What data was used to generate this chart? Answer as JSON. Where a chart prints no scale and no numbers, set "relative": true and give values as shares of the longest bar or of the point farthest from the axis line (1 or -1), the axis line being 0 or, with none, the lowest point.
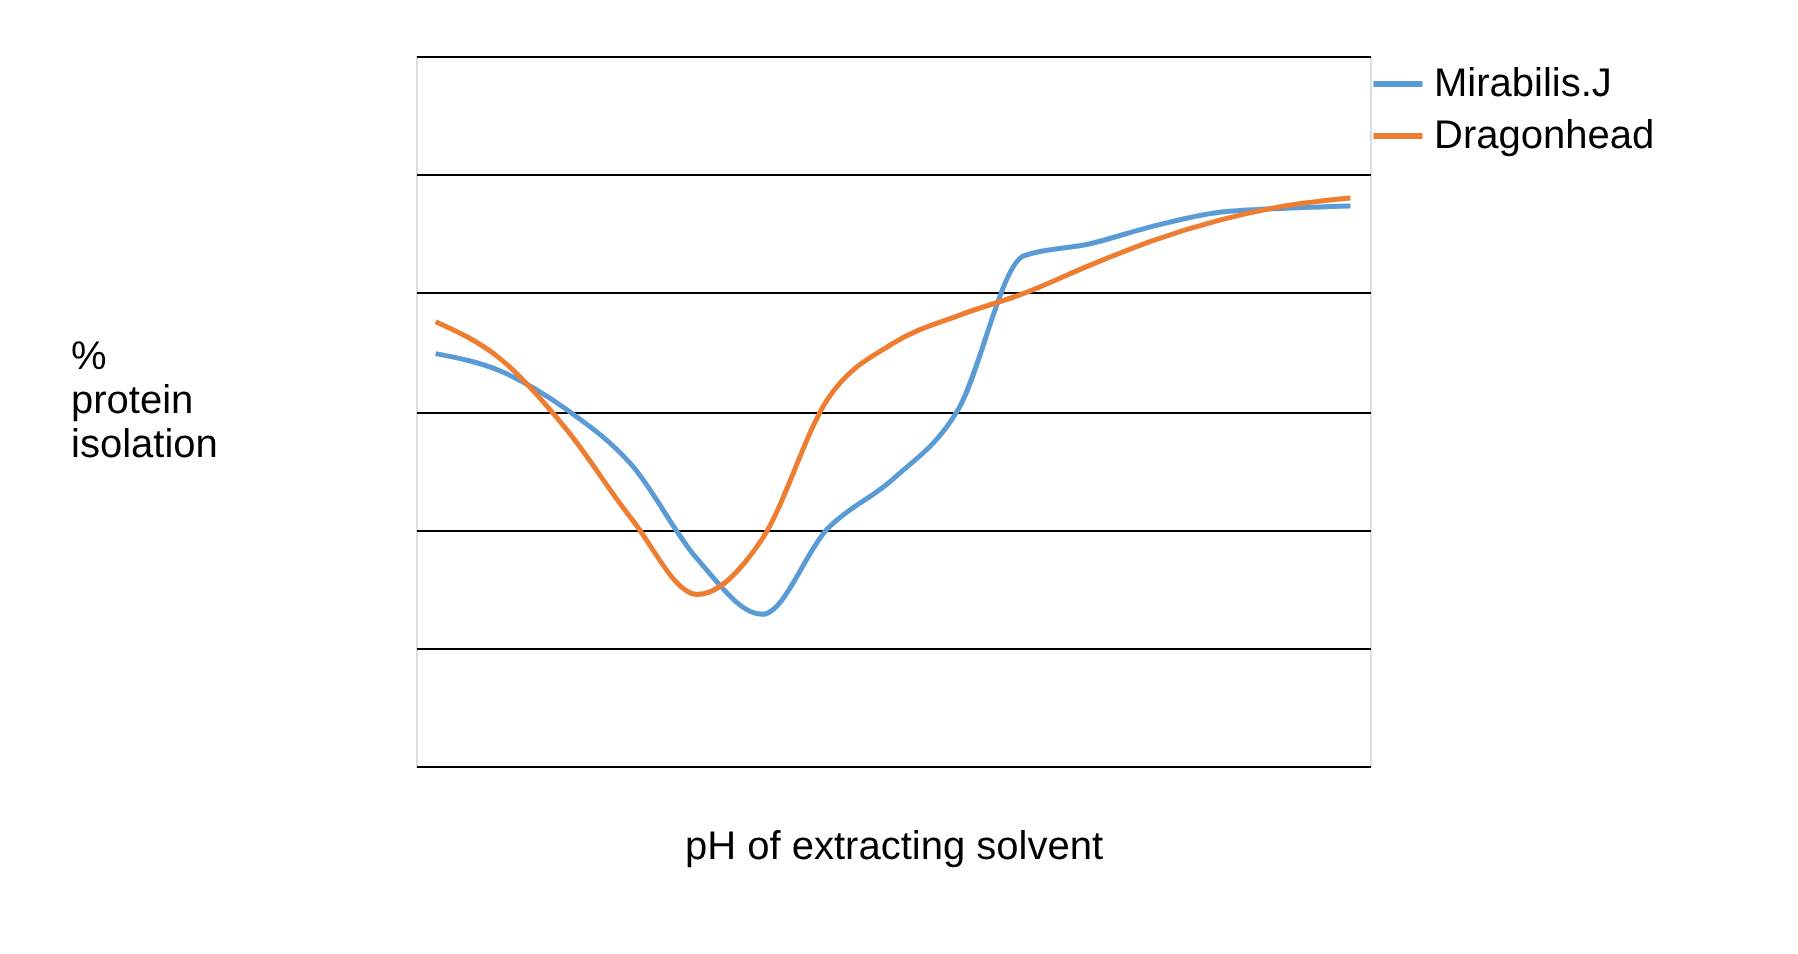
{
  "chart_data": {
    "type": "line",
    "relative": true,
    "xlabel": "pH of extracting solvent",
    "ylabel": "% protein isolation",
    "categories": [
      null,
      null,
      null,
      null,
      null,
      null,
      null,
      null,
      null,
      null,
      null,
      null,
      null,
      null,
      null
    ],
    "series": [
      {
        "name": "Mirabilis.J",
        "color": "#5b9bd5",
        "values": [
          0.726,
          0.695,
          0.628,
          0.53,
          0.365,
          0.267,
          0.418,
          0.505,
          0.628,
          0.898,
          0.919,
          0.951,
          0.975,
          0.982,
          0.986
        ]
      },
      {
        "name": "Dragonhead",
        "color": "#ed7d31",
        "values": [
          0.782,
          0.716,
          0.593,
          0.435,
          0.302,
          0.4,
          0.646,
          0.744,
          0.793,
          0.832,
          0.881,
          0.926,
          0.961,
          0.986,
          1.0
        ]
      }
    ],
    "grid": "y",
    "legend": "right",
    "marker": "none",
    "line_style": "solid"
  }
}
